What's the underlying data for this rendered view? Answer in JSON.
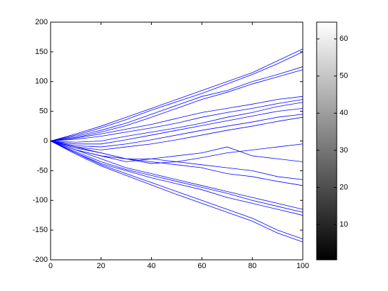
{
  "chart_data": [
    {
      "type": "line",
      "color": "#0000ff",
      "xlim": [
        0,
        100
      ],
      "xticks": [
        0,
        20,
        40,
        60,
        80,
        100
      ],
      "ylim": [
        -200,
        200
      ],
      "yticks": [
        -200,
        -150,
        -100,
        -50,
        0,
        50,
        100,
        150,
        200
      ],
      "grid": false,
      "box": true,
      "x": [
        0,
        10,
        20,
        30,
        40,
        50,
        60,
        70,
        80,
        90,
        100
      ],
      "series": [
        {
          "values": [
            0,
            12,
            25,
            40,
            55,
            70,
            85,
            100,
            115,
            135,
            155
          ]
        },
        {
          "values": [
            0,
            10,
            22,
            36,
            52,
            66,
            80,
            96,
            112,
            130,
            150
          ]
        },
        {
          "values": [
            0,
            8,
            18,
            30,
            45,
            60,
            75,
            85,
            100,
            112,
            125
          ]
        },
        {
          "values": [
            0,
            6,
            15,
            26,
            40,
            55,
            70,
            82,
            96,
            108,
            120
          ]
        },
        {
          "values": [
            0,
            5,
            12,
            20,
            28,
            38,
            48,
            55,
            62,
            70,
            75
          ]
        },
        {
          "values": [
            0,
            3,
            8,
            15,
            22,
            30,
            40,
            48,
            55,
            63,
            70
          ]
        },
        {
          "values": [
            0,
            -2,
            0,
            8,
            15,
            22,
            30,
            40,
            48,
            58,
            65
          ]
        },
        {
          "values": [
            0,
            -5,
            -5,
            2,
            10,
            18,
            26,
            34,
            42,
            50,
            55
          ]
        },
        {
          "values": [
            0,
            -8,
            -10,
            -5,
            2,
            10,
            18,
            25,
            32,
            40,
            45
          ]
        },
        {
          "values": [
            0,
            -10,
            -15,
            -10,
            -5,
            2,
            10,
            18,
            25,
            33,
            40
          ]
        },
        {
          "values": [
            0,
            -10,
            -20,
            -30,
            -38,
            -35,
            -28,
            -20,
            -15,
            -10,
            -5
          ]
        },
        {
          "values": [
            0,
            -15,
            -25,
            -35,
            -30,
            -25,
            -20,
            -10,
            -25,
            -30,
            -35
          ]
        },
        {
          "values": [
            0,
            -12,
            -20,
            -30,
            -30,
            -35,
            -40,
            -45,
            -50,
            -60,
            -65
          ]
        },
        {
          "values": [
            0,
            -15,
            -25,
            -30,
            -35,
            -40,
            -45,
            -55,
            -60,
            -68,
            -75
          ]
        },
        {
          "values": [
            0,
            -15,
            -30,
            -45,
            -55,
            -65,
            -75,
            -85,
            -95,
            -105,
            -115
          ]
        },
        {
          "values": [
            0,
            -18,
            -35,
            -48,
            -58,
            -68,
            -78,
            -88,
            -100,
            -110,
            -120
          ]
        },
        {
          "values": [
            0,
            -20,
            -38,
            -50,
            -62,
            -72,
            -82,
            -95,
            -105,
            -115,
            -125
          ]
        },
        {
          "values": [
            0,
            -20,
            -40,
            -55,
            -70,
            -85,
            -100,
            -115,
            -130,
            -150,
            -165
          ]
        },
        {
          "values": [
            0,
            -22,
            -42,
            -58,
            -74,
            -90,
            -105,
            -120,
            -135,
            -155,
            -170
          ]
        }
      ]
    },
    {
      "type": "colorbar",
      "clim": [
        0.5,
        64.5
      ],
      "ticks": [
        10,
        20,
        30,
        40,
        50,
        60
      ],
      "colors": [
        "#000000",
        "#ffffff"
      ]
    }
  ]
}
